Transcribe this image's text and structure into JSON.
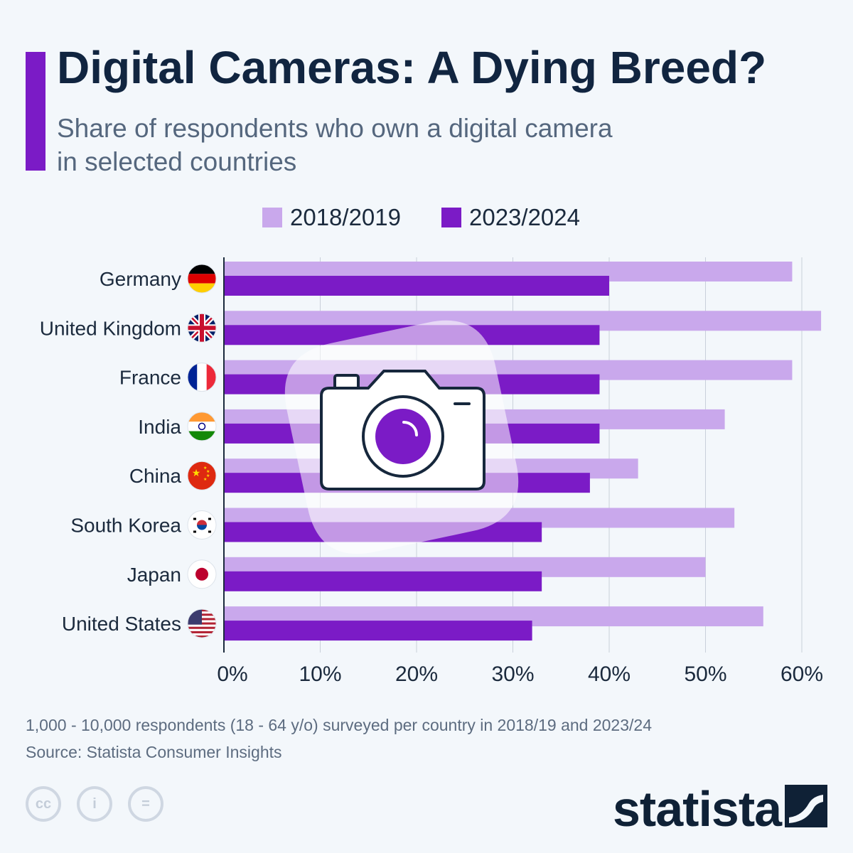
{
  "header": {
    "title": "Digital Cameras: A Dying Breed?",
    "subtitle_line1": "Share of respondents who own a digital camera",
    "subtitle_line2": "in selected countries"
  },
  "colors": {
    "accent": "#7b1bc6",
    "series_2018": "#c9a8ec",
    "series_2023": "#7b1bc6"
  },
  "chart_data": {
    "type": "bar",
    "orientation": "horizontal",
    "title": "Digital Cameras: A Dying Breed?",
    "subtitle": "Share of respondents who own a digital camera in selected countries",
    "categories": [
      "Germany",
      "United Kingdom",
      "France",
      "India",
      "China",
      "South Korea",
      "Japan",
      "United States"
    ],
    "flags": [
      "germany-flag",
      "uk-flag",
      "france-flag",
      "india-flag",
      "china-flag",
      "south-korea-flag",
      "japan-flag",
      "usa-flag"
    ],
    "series": [
      {
        "name": "2018/2019",
        "values": [
          59,
          62,
          59,
          52,
          43,
          53,
          50,
          56
        ]
      },
      {
        "name": "2023/2024",
        "values": [
          40,
          39,
          39,
          39,
          38,
          33,
          33,
          32
        ]
      }
    ],
    "xlim": [
      0,
      60
    ],
    "ticks": [
      "0%",
      "10%",
      "20%",
      "30%",
      "40%",
      "50%",
      "60%"
    ],
    "grid": true,
    "legend_position": "top"
  },
  "footer": {
    "note": "1,000 - 10,000 respondents (18 - 64 y/o) surveyed per country in 2018/19 and 2023/24",
    "source": "Source: Statista Consumer Insights",
    "logo_text": "statista",
    "license_icons": [
      "cc-icon",
      "attribution-icon",
      "no-derivatives-icon"
    ],
    "license_glyphs": [
      "cc",
      "i",
      "="
    ]
  }
}
